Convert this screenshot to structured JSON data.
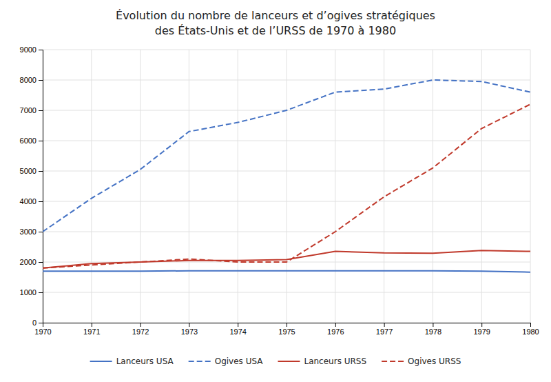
{
  "chart_data": {
    "type": "line",
    "title": "Évolution du nombre de lanceurs et d’ogives stratégiques",
    "subtitle": "des États-Unis et de l’URSS de 1970 à 1980",
    "x": [
      1970,
      1971,
      1972,
      1973,
      1974,
      1975,
      1976,
      1977,
      1978,
      1979,
      1980
    ],
    "xlim": [
      1970,
      1980
    ],
    "xticks": [
      1970,
      1971,
      1972,
      1973,
      1974,
      1975,
      1976,
      1977,
      1978,
      1979,
      1980
    ],
    "ylim": [
      0,
      9000
    ],
    "yticks": [
      0,
      1000,
      2000,
      3000,
      4000,
      5000,
      6000,
      7000,
      8000,
      9000
    ],
    "grid": true,
    "legend": "bottom",
    "series": [
      {
        "name": "Lanceurs USA",
        "color": "#4472c4",
        "line_style": "solid",
        "values": [
          1700,
          1700,
          1700,
          1710,
          1710,
          1710,
          1710,
          1710,
          1710,
          1700,
          1665
        ]
      },
      {
        "name": "Ogives USA",
        "color": "#4472c4",
        "line_style": "dashed",
        "values": [
          3000,
          4100,
          5050,
          6300,
          6600,
          7000,
          7600,
          7700,
          8000,
          7950,
          7600
        ]
      },
      {
        "name": "Lanceurs URSS",
        "color": "#c0392b",
        "line_style": "solid",
        "values": [
          1800,
          1950,
          2000,
          2050,
          2050,
          2080,
          2350,
          2300,
          2290,
          2380,
          2350
        ]
      },
      {
        "name": "Ogives URSS",
        "color": "#c0392b",
        "line_style": "dashed",
        "values": [
          1800,
          1900,
          2000,
          2100,
          2000,
          2000,
          3000,
          4150,
          5100,
          6400,
          7200
        ]
      }
    ]
  }
}
